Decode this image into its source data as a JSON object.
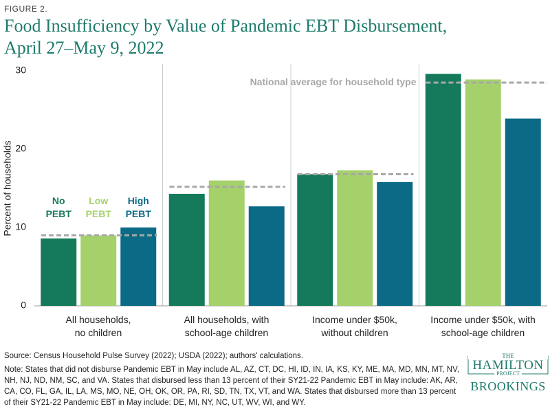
{
  "figure_label": "FIGURE 2.",
  "chart_data": {
    "type": "bar",
    "title": "Food Insufficiency by Value of Pandemic EBT Disbursement,\nApril 27–May 9, 2022",
    "y_label": "Percent of households",
    "categories": [
      "All households,\nno children",
      "All households, with\nschool-age children",
      "Income under $50k,\nwithout children",
      "Income under $50k, with\nschool-age children"
    ],
    "series": [
      {
        "name": "No\nPEBT",
        "color": "#157a5c",
        "values": [
          8.6,
          14.3,
          16.8,
          29.6
        ]
      },
      {
        "name": "Low\nPEBT",
        "color": "#a5d16b",
        "values": [
          9.0,
          16.0,
          17.3,
          28.9
        ]
      },
      {
        "name": "High\nPEBT",
        "color": "#0b6a86",
        "values": [
          10.0,
          12.7,
          15.8,
          23.9
        ]
      }
    ],
    "reference": {
      "name": "National average for household type",
      "color": "#a8a8a8",
      "values": [
        9.0,
        15.2,
        16.8,
        28.5
      ]
    },
    "ylim": [
      0,
      30
    ],
    "yticks": [
      0,
      10,
      20,
      30
    ],
    "grid": false
  },
  "source": "Source: Census Household Pulse Survey (2022); USDA (2022); authors' calculations.",
  "note": "Note: States that did not disburse Pandemic EBT in May include AL, AZ, CT, DC, HI, ID, IN, IA, KS, KY, ME, MA, MD, MN, MT, NV, NH, NJ, ND, NM, SC, and VA. States that disbursed less than 13 percent of their SY21-22 Pandemic EBT in May include: AK, AR, CA, CO, FL, GA, IL, LA, MS, MO, NE, OH, OK, OR, PA, RI, SD, TN, TX, VT, and WA. States that disbursed more than 13 percent of their SY21-22 Pandemic EBT in May include: DE, MI, NY, NC, UT, WV, WI, and WY.",
  "logo": {
    "top": "THE",
    "name": "HAMILTON",
    "sub": "PROJECT",
    "brand": "BROOKINGS"
  }
}
